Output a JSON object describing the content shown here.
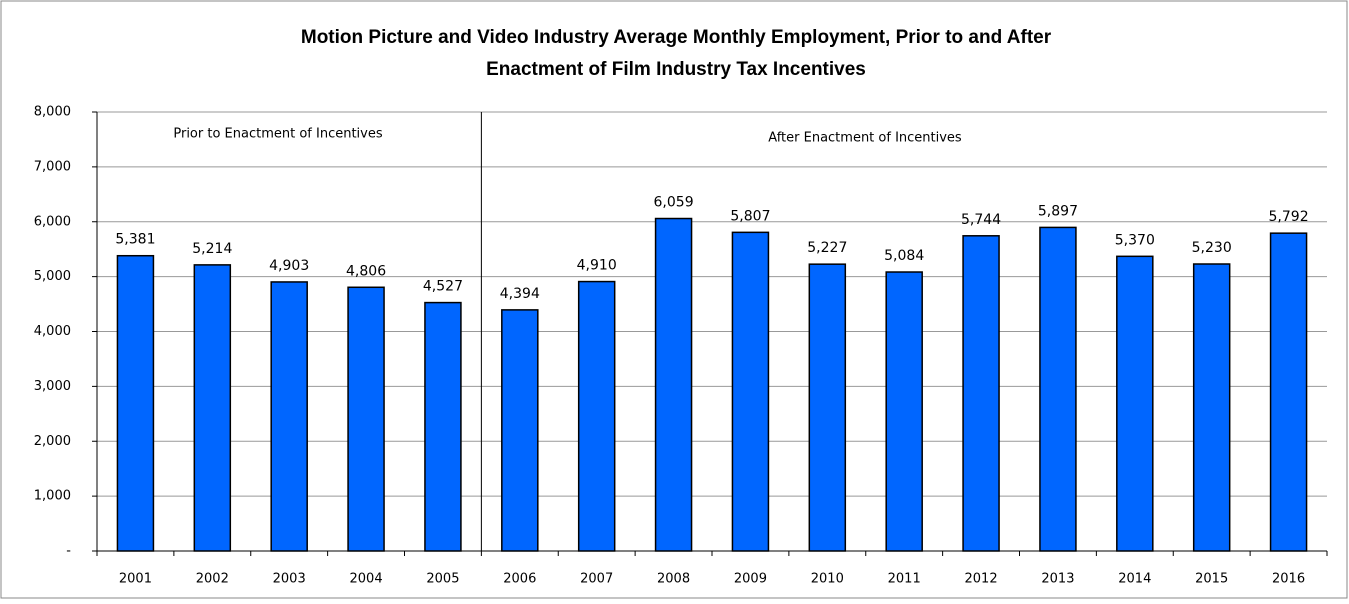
{
  "chart_data": {
    "type": "bar",
    "title": "Motion Picture and Video Industry Average Monthly Employment, Prior to and After",
    "subtitle": "Enactment of Film Industry Tax Incentives",
    "annotations": [
      "Prior to Enactment of Incentives",
      "After Enactment of Incentives"
    ],
    "categories": [
      "2001",
      "2002",
      "2003",
      "2004",
      "2005",
      "2006",
      "2007",
      "2008",
      "2009",
      "2010",
      "2011",
      "2012",
      "2013",
      "2014",
      "2015",
      "2016"
    ],
    "values": [
      5381,
      5214,
      4903,
      4806,
      4527,
      4394,
      4910,
      6059,
      5807,
      5227,
      5084,
      5744,
      5897,
      5370,
      5230,
      5792
    ],
    "value_labels": [
      "5,381",
      "5,214",
      "4,903",
      "4,806",
      "4,527",
      "4,394",
      "4,910",
      "6,059",
      "5,807",
      "5,227",
      "5,084",
      "5,744",
      "5,897",
      "5,370",
      "5,230",
      "5,792"
    ],
    "color": "#0066ff",
    "ylim": [
      0,
      8000
    ],
    "yticks": [
      {
        "value": 0,
        "label": "-"
      },
      {
        "value": 1000,
        "label": "1,000"
      },
      {
        "value": 2000,
        "label": "2,000"
      },
      {
        "value": 3000,
        "label": "3,000"
      },
      {
        "value": 4000,
        "label": "4,000"
      },
      {
        "value": 5000,
        "label": "5,000"
      },
      {
        "value": 6000,
        "label": "6,000"
      },
      {
        "value": 7000,
        "label": "7,000"
      },
      {
        "value": 8000,
        "label": "8,000"
      }
    ],
    "grid": true
  }
}
